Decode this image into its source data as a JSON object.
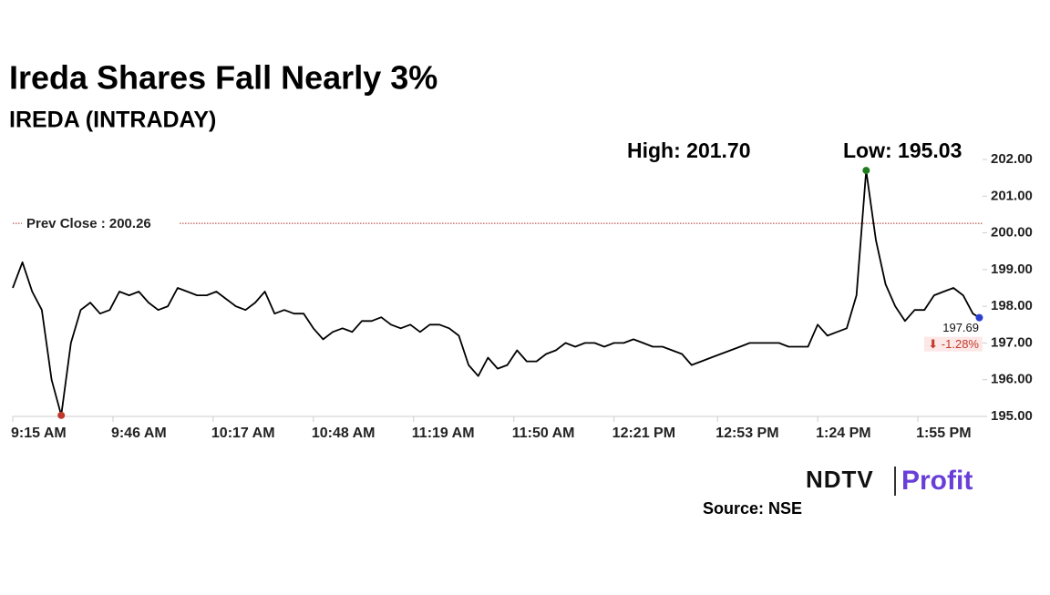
{
  "chart_data": {
    "type": "line",
    "title": "Ireda Shares Fall Nearly 3%",
    "subtitle": "IREDA (INTRADAY)",
    "annotations": {
      "high": "High: 201.70",
      "low": "Low: 195.03"
    },
    "prev_close": {
      "value": 200.26,
      "label": "Prev Close : 200.26"
    },
    "last_value": 197.69,
    "change": {
      "value": -1.28,
      "label": "⬇ -1.28%"
    },
    "color": "#000000",
    "low_color": "#c0392b",
    "high_color": "#1e7d1e",
    "last_color": "#2a3fd0",
    "x": [
      555,
      558,
      561,
      564,
      567,
      570,
      573,
      576,
      579,
      582,
      585,
      588,
      591,
      594,
      597,
      600,
      603,
      606,
      609,
      612,
      615,
      618,
      621,
      624,
      627,
      630,
      633,
      636,
      639,
      642,
      645,
      648,
      651,
      654,
      657,
      660,
      663,
      666,
      669,
      672,
      675,
      678,
      681,
      684,
      687,
      690,
      693,
      696,
      699,
      702,
      705,
      708,
      711,
      714,
      717,
      720,
      723,
      726,
      729,
      732,
      735,
      738,
      741,
      744,
      747,
      750,
      753,
      756,
      759,
      762,
      765,
      768,
      771,
      774,
      777,
      780,
      783,
      786,
      789,
      792,
      795,
      798,
      801,
      804,
      807,
      810,
      813,
      816,
      819,
      822,
      825,
      828,
      831,
      834,
      837,
      840,
      843,
      846,
      849,
      852,
      854
    ],
    "values": [
      198.5,
      199.2,
      198.4,
      197.9,
      196.0,
      195.03,
      197.0,
      197.9,
      198.1,
      197.8,
      197.9,
      198.4,
      198.3,
      198.4,
      198.1,
      197.9,
      198.0,
      198.5,
      198.4,
      198.3,
      198.3,
      198.4,
      198.2,
      198.0,
      197.9,
      198.1,
      198.4,
      197.8,
      197.9,
      197.8,
      197.8,
      197.4,
      197.1,
      197.3,
      197.4,
      197.3,
      197.6,
      197.6,
      197.7,
      197.5,
      197.4,
      197.5,
      197.3,
      197.5,
      197.5,
      197.4,
      197.2,
      196.4,
      196.1,
      196.6,
      196.3,
      196.4,
      196.8,
      196.5,
      196.5,
      196.7,
      196.8,
      197.0,
      196.9,
      197.0,
      197.0,
      196.9,
      197.0,
      197.0,
      197.1,
      197.0,
      196.9,
      196.9,
      196.8,
      196.7,
      196.4,
      196.5,
      196.6,
      196.7,
      196.8,
      196.9,
      197.0,
      197.0,
      197.0,
      197.0,
      196.9,
      196.9,
      196.9,
      197.5,
      197.2,
      197.3,
      197.4,
      198.3,
      201.7,
      199.8,
      198.6,
      198.0,
      197.6,
      197.9,
      197.9,
      198.3,
      198.4,
      198.5,
      198.3,
      197.8,
      197.69
    ],
    "xlim": [
      555,
      855
    ],
    "xticks": [
      {
        "value": 555,
        "label": "9:15 AM"
      },
      {
        "value": 586,
        "label": "9:46 AM"
      },
      {
        "value": 617,
        "label": "10:17 AM"
      },
      {
        "value": 648,
        "label": "10:48 AM"
      },
      {
        "value": 679,
        "label": "11:19 AM"
      },
      {
        "value": 710,
        "label": "11:50 AM"
      },
      {
        "value": 741,
        "label": "12:21 PM"
      },
      {
        "value": 773,
        "label": "12:53 PM"
      },
      {
        "value": 804,
        "label": "1:24 PM"
      },
      {
        "value": 835,
        "label": "1:55 PM"
      }
    ],
    "ylim": [
      195,
      202
    ],
    "yticks": [
      {
        "value": 195,
        "label": "195.00"
      },
      {
        "value": 196,
        "label": "196.00"
      },
      {
        "value": 197,
        "label": "197.00"
      },
      {
        "value": 198,
        "label": "198.00"
      },
      {
        "value": 199,
        "label": "199.00"
      },
      {
        "value": 200,
        "label": "200.00"
      },
      {
        "value": 201,
        "label": "201.00"
      },
      {
        "value": 202,
        "label": "202.00"
      }
    ],
    "brand": "NDTV",
    "brand_sub": "Profit",
    "source": "Source: NSE"
  }
}
